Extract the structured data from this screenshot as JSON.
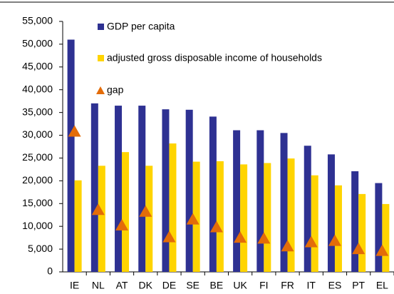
{
  "chart_data": {
    "type": "bar",
    "categories": [
      "IE",
      "NL",
      "AT",
      "DK",
      "DE",
      "SE",
      "BE",
      "UK",
      "FI",
      "FR",
      "IT",
      "ES",
      "PT",
      "EL"
    ],
    "series": [
      {
        "name": "GDP per capita",
        "color": "#2e3192",
        "type": "bar",
        "values": [
          51000,
          37000,
          36500,
          36500,
          35700,
          35600,
          34100,
          31100,
          31100,
          30500,
          27700,
          25800,
          22100,
          19500
        ]
      },
      {
        "name": "adjusted gross disposable income of households",
        "color": "#ffd400",
        "type": "bar",
        "values": [
          20100,
          23300,
          26300,
          23300,
          28200,
          24200,
          24300,
          23600,
          23900,
          24900,
          21200,
          19000,
          17100,
          14900
        ]
      },
      {
        "name": "gap",
        "color": "#e36c09",
        "type": "triangle",
        "values": [
          30800,
          13600,
          10200,
          13200,
          7600,
          11500,
          9800,
          7500,
          7300,
          5600,
          6500,
          6800,
          5000,
          4600
        ]
      }
    ],
    "ylim": [
      0,
      55000
    ],
    "yticks": [
      0,
      {
        "value": 5000,
        "label": "5,000"
      },
      {
        "value": 10000,
        "label": "10,000"
      },
      {
        "value": 15000,
        "label": "15,000"
      },
      {
        "value": 20000,
        "label": "20,000"
      },
      {
        "value": 25000,
        "label": "25,000"
      },
      {
        "value": 30000,
        "label": "30,000"
      },
      {
        "value": 35000,
        "label": "35,000"
      },
      {
        "value": 40000,
        "label": "40,000"
      },
      {
        "value": 45000,
        "label": "45,000"
      },
      {
        "value": 50000,
        "label": "50,000"
      },
      {
        "value": 55000,
        "label": "55,000"
      }
    ],
    "grid": false
  }
}
